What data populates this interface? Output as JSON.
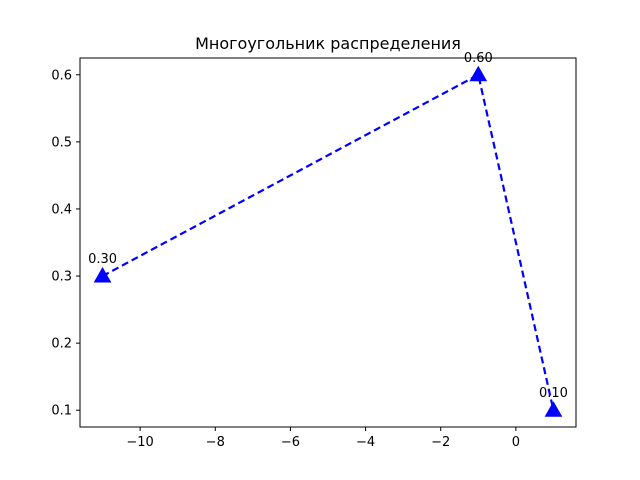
{
  "chart_data": {
    "type": "line",
    "title": "Многоугольник распределения",
    "xlabel": "",
    "ylabel": "",
    "xlim": [
      -11.6,
      1.6
    ],
    "ylim": [
      0.075,
      0.625
    ],
    "x_ticks": [
      -10,
      -8,
      -6,
      -4,
      -2,
      0
    ],
    "x_tick_labels": [
      "−10",
      "−8",
      "−6",
      "−4",
      "−2",
      "0"
    ],
    "y_ticks": [
      0.1,
      0.2,
      0.3,
      0.4,
      0.5,
      0.6
    ],
    "y_tick_labels": [
      "0.1",
      "0.2",
      "0.3",
      "0.4",
      "0.5",
      "0.6"
    ],
    "grid": false,
    "series": [
      {
        "color": "#0000ff",
        "line_style": "dashed",
        "marker": "triangle-up",
        "x": [
          -11,
          -1,
          1
        ],
        "y": [
          0.3,
          0.6,
          0.1
        ],
        "labels": [
          "0.30",
          "0.60",
          "0.10"
        ]
      }
    ]
  }
}
